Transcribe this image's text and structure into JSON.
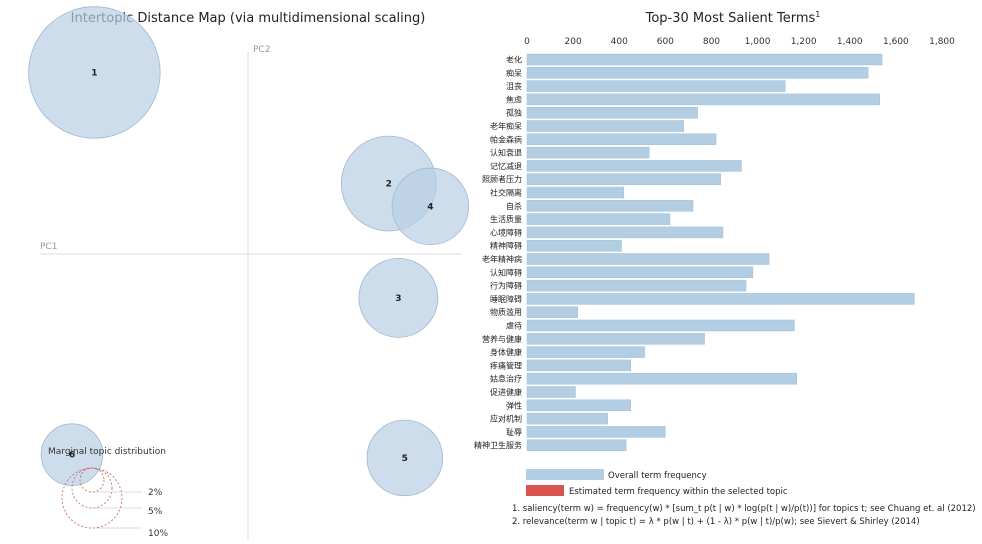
{
  "left_panel": {
    "title": "Intertopic Distance Map (via multidimensional scaling)",
    "pc1_label": "PC1",
    "pc2_label": "PC2",
    "marginal_title": "Marginal topic distribution",
    "marginal_legend": [
      "2%",
      "5%",
      "10%"
    ],
    "bubble_color": "#b8cfe4",
    "bubble_stroke": "#9fb8d2"
  },
  "right_panel": {
    "title": "Top-30 Most Salient Terms",
    "title_sup": "1",
    "legend": {
      "overall": "Overall term frequency",
      "estimated": "Estimated term frequency within the selected topic",
      "overall_color": "#b3cde3",
      "estimated_color": "#d9534f"
    },
    "footnotes": [
      "1. saliency(term w) = frequency(w) * [sum_t p(t | w) * log(p(t | w)/p(t))] for topics t; see Chuang et. al (2012)",
      "2. relevance(term w | topic t) = λ * p(w | t) + (1 - λ) * p(w | t)/p(w); see Sievert & Shirley (2014)"
    ]
  },
  "chart_data": [
    {
      "type": "scatter",
      "title": "Intertopic Distance Map (via multidimensional scaling)",
      "xlabel": "PC1",
      "ylabel": "PC2",
      "topics": [
        {
          "id": "1",
          "x": -0.48,
          "y": 0.62,
          "size": 10.0
        },
        {
          "id": "2",
          "x": 0.44,
          "y": 0.28,
          "size": 5.2
        },
        {
          "id": "3",
          "x": 0.47,
          "y": -0.07,
          "size": 3.6
        },
        {
          "id": "4",
          "x": 0.57,
          "y": 0.21,
          "size": 3.4
        },
        {
          "id": "5",
          "x": 0.49,
          "y": -0.56,
          "size": 3.3
        },
        {
          "id": "6",
          "x": -0.55,
          "y": -0.55,
          "size": 2.2
        }
      ],
      "xlim": [
        -0.65,
        0.65
      ],
      "ylim": [
        -0.75,
        0.75
      ]
    },
    {
      "type": "bar",
      "orientation": "horizontal",
      "title": "Top-30 Most Salient Terms",
      "categories": [
        "老化",
        "痴呆",
        "沮丧",
        "焦虑",
        "孤独",
        "老年痴呆",
        "帕金森病",
        "认知衰退",
        "记忆减退",
        "照顾者压力",
        "社交隔离",
        "自杀",
        "生活质量",
        "心境障碍",
        "精神障碍",
        "老年精神病",
        "认知障碍",
        "行为障碍",
        "睡眠障碍",
        "物质滥用",
        "虐待",
        "营养与健康",
        "身体健康",
        "疼痛管理",
        "姑息治疗",
        "促进健康",
        "弹性",
        "应对机制",
        "耻辱",
        "精神卫生服务"
      ],
      "values": [
        1540,
        1480,
        1120,
        1530,
        740,
        680,
        820,
        530,
        930,
        840,
        420,
        720,
        620,
        850,
        410,
        1050,
        980,
        950,
        1680,
        220,
        1160,
        770,
        510,
        450,
        1170,
        210,
        450,
        350,
        600,
        430
      ],
      "xlim": [
        0,
        1800
      ],
      "xticks": [
        0,
        200,
        400,
        600,
        800,
        1000,
        1200,
        1400,
        1600,
        1800
      ],
      "xtick_labels": [
        "0",
        "200",
        "400",
        "600",
        "800",
        "1,000",
        "1,200",
        "1,400",
        "1,600",
        "1,800"
      ],
      "series": [
        {
          "name": "Overall term frequency",
          "color": "#b3cde3"
        }
      ]
    }
  ]
}
